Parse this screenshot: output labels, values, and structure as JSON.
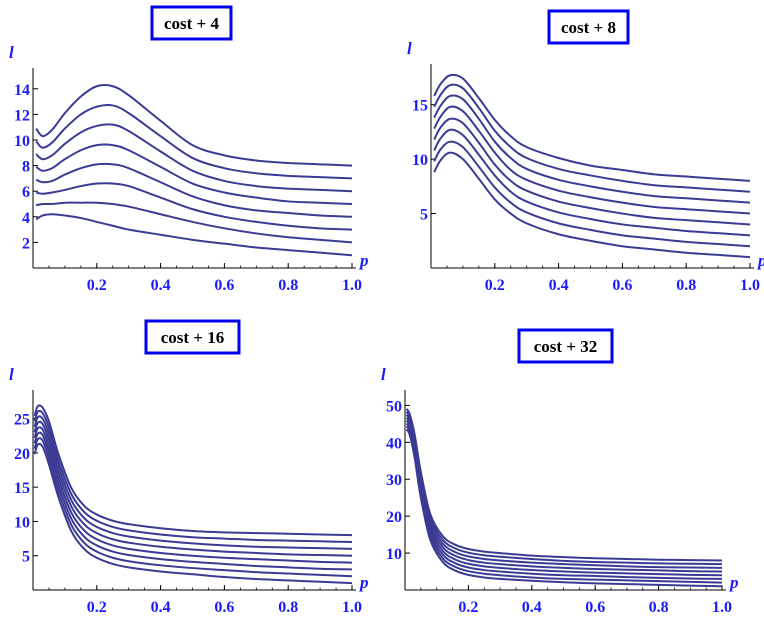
{
  "colors": {
    "curve": "#3b3b94",
    "text": "#1a1aff",
    "axis": "#000000",
    "title_border": "#0000ee"
  },
  "chart_data": [
    {
      "type": "line",
      "title": "cost + 4",
      "xlabel": "p",
      "ylabel": "l",
      "xlim": [
        0,
        1.0
      ],
      "ylim": [
        0,
        15
      ],
      "x_ticks": [
        "0.2",
        "0.4",
        "0.6",
        "0.8",
        "1.0"
      ],
      "y_ticks": [
        "2",
        "4",
        "6",
        "8",
        "10",
        "12",
        "14"
      ],
      "grid": false,
      "x": [
        0.01,
        0.03,
        0.06,
        0.1,
        0.15,
        0.2,
        0.25,
        0.3,
        0.4,
        0.5,
        0.6,
        0.7,
        0.8,
        0.9,
        1.0
      ],
      "series": [
        {
          "values": [
            3.8,
            4.1,
            4.2,
            4.1,
            3.9,
            3.6,
            3.3,
            3.0,
            2.6,
            2.2,
            1.9,
            1.6,
            1.4,
            1.2,
            1.0
          ]
        },
        {
          "values": [
            4.9,
            5.0,
            5.0,
            5.1,
            5.1,
            5.1,
            5.0,
            4.8,
            4.2,
            3.6,
            3.1,
            2.7,
            2.4,
            2.2,
            2.0
          ]
        },
        {
          "values": [
            5.9,
            5.8,
            5.9,
            6.1,
            6.4,
            6.6,
            6.6,
            6.4,
            5.5,
            4.6,
            4.0,
            3.6,
            3.3,
            3.1,
            3.0
          ]
        },
        {
          "values": [
            6.9,
            6.7,
            6.8,
            7.3,
            7.8,
            8.1,
            8.1,
            7.8,
            6.7,
            5.6,
            4.9,
            4.5,
            4.3,
            4.1,
            4.0
          ]
        },
        {
          "values": [
            7.9,
            7.6,
            7.8,
            8.5,
            9.2,
            9.6,
            9.6,
            9.2,
            7.9,
            6.6,
            5.9,
            5.5,
            5.2,
            5.1,
            5.0
          ]
        },
        {
          "values": [
            8.9,
            8.5,
            8.8,
            9.7,
            10.6,
            11.1,
            11.2,
            10.7,
            9.1,
            7.6,
            6.8,
            6.4,
            6.2,
            6.1,
            6.0
          ]
        },
        {
          "values": [
            9.9,
            9.4,
            9.8,
            10.9,
            12.0,
            12.6,
            12.7,
            12.1,
            10.3,
            8.6,
            7.8,
            7.4,
            7.2,
            7.1,
            7.0
          ]
        },
        {
          "values": [
            10.9,
            10.3,
            10.8,
            12.1,
            13.4,
            14.2,
            14.2,
            13.5,
            11.5,
            9.6,
            8.8,
            8.4,
            8.2,
            8.1,
            8.0
          ]
        }
      ]
    },
    {
      "type": "line",
      "title": "cost + 8",
      "xlabel": "p",
      "ylabel": "l",
      "xlim": [
        0,
        1.0
      ],
      "ylim": [
        0,
        18
      ],
      "x_ticks": [
        "0.2",
        "0.4",
        "0.6",
        "0.8",
        "1.0"
      ],
      "y_ticks": [
        "5",
        "10",
        "15"
      ],
      "grid": false,
      "x": [
        0.01,
        0.03,
        0.06,
        0.1,
        0.15,
        0.2,
        0.25,
        0.3,
        0.4,
        0.5,
        0.6,
        0.7,
        0.8,
        0.9,
        1.0
      ],
      "series": [
        {
          "values": [
            8.8,
            9.9,
            10.6,
            10.0,
            8.2,
            6.3,
            5.0,
            4.1,
            3.1,
            2.5,
            2.0,
            1.7,
            1.4,
            1.2,
            1.0
          ]
        },
        {
          "values": [
            9.8,
            10.9,
            11.6,
            11.1,
            9.3,
            7.4,
            6.0,
            5.1,
            4.1,
            3.5,
            3.0,
            2.7,
            2.4,
            2.2,
            2.0
          ]
        },
        {
          "values": [
            10.8,
            11.9,
            12.7,
            12.2,
            10.4,
            8.5,
            7.0,
            6.1,
            5.1,
            4.5,
            4.0,
            3.7,
            3.4,
            3.2,
            3.0
          ]
        },
        {
          "values": [
            11.8,
            12.9,
            13.7,
            13.3,
            11.5,
            9.5,
            8.0,
            7.1,
            6.1,
            5.5,
            5.0,
            4.6,
            4.4,
            4.2,
            4.0
          ]
        },
        {
          "values": [
            12.8,
            13.9,
            14.8,
            14.4,
            12.6,
            10.6,
            9.0,
            8.1,
            7.1,
            6.5,
            6.0,
            5.6,
            5.4,
            5.2,
            5.0
          ]
        },
        {
          "values": [
            13.8,
            14.9,
            15.8,
            15.5,
            13.7,
            11.6,
            10.1,
            9.1,
            8.1,
            7.5,
            7.0,
            6.6,
            6.4,
            6.2,
            6.0
          ]
        },
        {
          "values": [
            14.8,
            15.9,
            16.8,
            16.5,
            14.7,
            12.6,
            11.1,
            10.1,
            9.1,
            8.5,
            8.0,
            7.6,
            7.4,
            7.2,
            7.0
          ]
        },
        {
          "values": [
            15.8,
            16.9,
            17.7,
            17.4,
            15.6,
            13.6,
            12.1,
            11.1,
            10.1,
            9.4,
            9.0,
            8.6,
            8.4,
            8.2,
            8.0
          ]
        }
      ]
    },
    {
      "type": "line",
      "title": "cost + 16",
      "xlabel": "p",
      "ylabel": "l",
      "xlim": [
        0,
        1.0
      ],
      "ylim": [
        0,
        28
      ],
      "x_ticks": [
        "0.2",
        "0.4",
        "0.6",
        "0.8",
        "1.0"
      ],
      "y_ticks": [
        "5",
        "10",
        "15",
        "20",
        "25"
      ],
      "grid": false,
      "x": [
        0.005,
        0.015,
        0.03,
        0.05,
        0.08,
        0.12,
        0.16,
        0.2,
        0.25,
        0.3,
        0.4,
        0.5,
        0.6,
        0.7,
        0.8,
        0.9,
        1.0
      ],
      "series": [
        {
          "values": [
            19.8,
            21.2,
            20.9,
            18.3,
            13.5,
            8.6,
            6.0,
            4.7,
            3.8,
            3.3,
            2.7,
            2.3,
            1.9,
            1.6,
            1.4,
            1.2,
            1.0
          ]
        },
        {
          "values": [
            20.6,
            22.0,
            21.8,
            19.2,
            14.4,
            9.5,
            6.9,
            5.6,
            4.7,
            4.2,
            3.6,
            3.2,
            2.9,
            2.6,
            2.4,
            2.2,
            2.0
          ]
        },
        {
          "values": [
            21.4,
            22.8,
            22.6,
            20.1,
            15.3,
            10.4,
            7.8,
            6.5,
            5.6,
            5.1,
            4.5,
            4.1,
            3.8,
            3.5,
            3.3,
            3.1,
            3.0
          ]
        },
        {
          "values": [
            22.2,
            23.6,
            23.4,
            21.0,
            16.2,
            11.3,
            8.7,
            7.4,
            6.5,
            6.0,
            5.4,
            5.0,
            4.7,
            4.5,
            4.3,
            4.1,
            4.0
          ]
        },
        {
          "values": [
            23.0,
            24.4,
            24.2,
            21.9,
            17.1,
            12.2,
            9.6,
            8.3,
            7.4,
            6.9,
            6.3,
            5.9,
            5.6,
            5.4,
            5.2,
            5.1,
            5.0
          ]
        },
        {
          "values": [
            23.8,
            25.2,
            25.0,
            22.8,
            18.0,
            13.1,
            10.5,
            9.2,
            8.3,
            7.8,
            7.2,
            6.8,
            6.5,
            6.3,
            6.2,
            6.1,
            6.0
          ]
        },
        {
          "values": [
            24.6,
            26.0,
            25.8,
            23.7,
            18.9,
            14.0,
            11.4,
            10.1,
            9.2,
            8.7,
            8.1,
            7.7,
            7.5,
            7.3,
            7.2,
            7.1,
            7.0
          ]
        },
        {
          "values": [
            25.4,
            26.8,
            26.6,
            24.6,
            19.8,
            14.9,
            12.3,
            11.0,
            10.1,
            9.6,
            9.0,
            8.6,
            8.4,
            8.3,
            8.2,
            8.1,
            8.0
          ]
        }
      ]
    },
    {
      "type": "line",
      "title": "cost + 32",
      "xlabel": "p",
      "ylabel": "l",
      "xlim": [
        0,
        1.0
      ],
      "ylim": [
        0,
        52
      ],
      "x_ticks": [
        "0.2",
        "0.4",
        "0.6",
        "0.8",
        "1.0"
      ],
      "y_ticks": [
        "10",
        "20",
        "30",
        "40",
        "50"
      ],
      "grid": false,
      "x": [
        0.005,
        0.015,
        0.03,
        0.05,
        0.08,
        0.12,
        0.16,
        0.2,
        0.25,
        0.3,
        0.4,
        0.5,
        0.6,
        0.7,
        0.8,
        0.9,
        1.0
      ],
      "series": [
        {
          "values": [
            43.5,
            42.0,
            36.0,
            25.0,
            13.5,
            7.5,
            5.2,
            4.1,
            3.4,
            3.0,
            2.5,
            2.1,
            1.8,
            1.6,
            1.4,
            1.2,
            1.0
          ]
        },
        {
          "values": [
            44.3,
            42.8,
            36.9,
            26.0,
            14.5,
            8.5,
            6.2,
            5.1,
            4.4,
            4.0,
            3.4,
            3.0,
            2.8,
            2.6,
            2.4,
            2.2,
            2.0
          ]
        },
        {
          "values": [
            45.1,
            43.6,
            37.8,
            27.0,
            15.5,
            9.5,
            7.2,
            6.1,
            5.4,
            5.0,
            4.4,
            4.0,
            3.8,
            3.5,
            3.3,
            3.1,
            3.0
          ]
        },
        {
          "values": [
            45.9,
            44.4,
            38.7,
            28.0,
            16.5,
            10.5,
            8.2,
            7.1,
            6.4,
            6.0,
            5.4,
            5.0,
            4.7,
            4.5,
            4.3,
            4.1,
            4.0
          ]
        },
        {
          "values": [
            46.7,
            45.2,
            39.6,
            29.0,
            17.5,
            11.5,
            9.2,
            8.1,
            7.4,
            7.0,
            6.4,
            6.0,
            5.7,
            5.5,
            5.3,
            5.1,
            5.0
          ]
        },
        {
          "values": [
            47.5,
            46.0,
            40.5,
            30.0,
            18.5,
            12.5,
            10.2,
            9.1,
            8.4,
            8.0,
            7.4,
            7.0,
            6.7,
            6.4,
            6.2,
            6.1,
            6.0
          ]
        },
        {
          "values": [
            48.3,
            46.8,
            41.4,
            31.0,
            19.5,
            13.5,
            11.2,
            10.1,
            9.4,
            9.0,
            8.4,
            7.9,
            7.6,
            7.4,
            7.2,
            7.1,
            7.0
          ]
        },
        {
          "values": [
            49.1,
            47.6,
            42.3,
            32.0,
            20.5,
            14.5,
            12.2,
            11.1,
            10.4,
            10.0,
            9.3,
            8.9,
            8.6,
            8.4,
            8.2,
            8.1,
            8.0
          ]
        }
      ]
    }
  ]
}
